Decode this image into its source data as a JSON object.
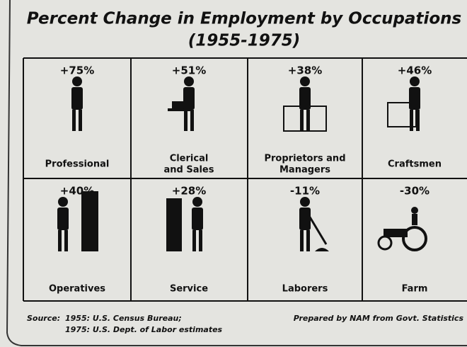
{
  "title": "Percent Change in Employment by Occupations",
  "subtitle": "(1955-1975)",
  "cells": [
    {
      "change": "+75%",
      "label": [
        "Professional"
      ]
    },
    {
      "change": "+51%",
      "label": [
        "Clerical",
        "and Sales"
      ]
    },
    {
      "change": "+38%",
      "label": [
        "Proprietors and",
        "Managers"
      ]
    },
    {
      "change": "+46%",
      "label": [
        "Craftsmen"
      ]
    },
    {
      "change": "+40%",
      "label": [
        "Operatives"
      ]
    },
    {
      "change": "+28%",
      "label": [
        "Service"
      ]
    },
    {
      "change": "-11%",
      "label": [
        "Laborers"
      ]
    },
    {
      "change": "-30%",
      "label": [
        "Farm"
      ]
    }
  ],
  "source": {
    "heading": "Source:",
    "lines": [
      "1955: U.S. Census Bureau;",
      "1975: U.S. Dept. of Labor estimates"
    ]
  },
  "credit": "Prepared by NAM from Govt. Statistics"
}
